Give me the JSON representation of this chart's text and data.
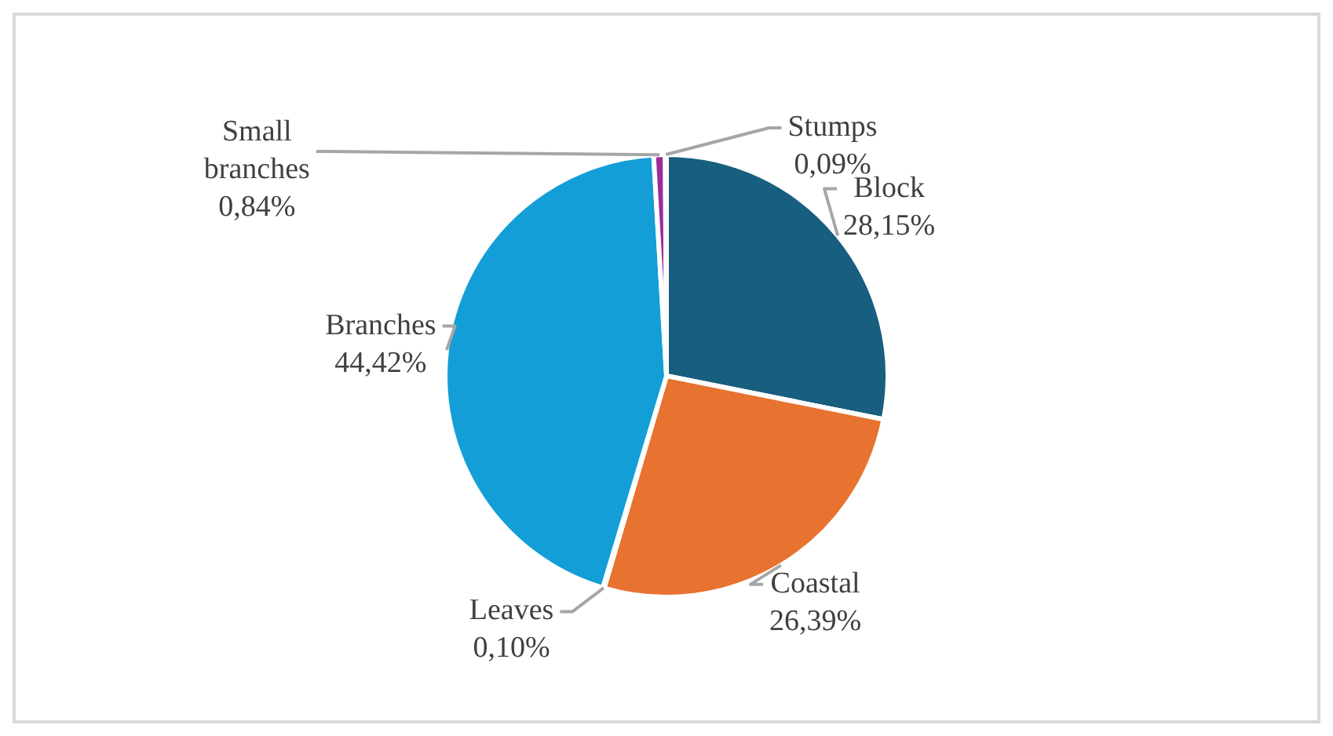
{
  "chart_data": {
    "type": "pie",
    "categories": [
      "Block",
      "Coastal",
      "Leaves",
      "Branches",
      "Small branches",
      "Stumps"
    ],
    "values": [
      28.15,
      26.39,
      0.1,
      44.42,
      0.84,
      0.09
    ],
    "colors": [
      "#175e7f",
      "#e8722f",
      "#a5a5a5",
      "#139ed7",
      "#9b2d9b",
      "#ffc000"
    ],
    "value_labels": [
      "28,15%",
      "26,39%",
      "0,10%",
      "44,42%",
      "0,84%",
      "0,09%"
    ],
    "legend": false
  }
}
